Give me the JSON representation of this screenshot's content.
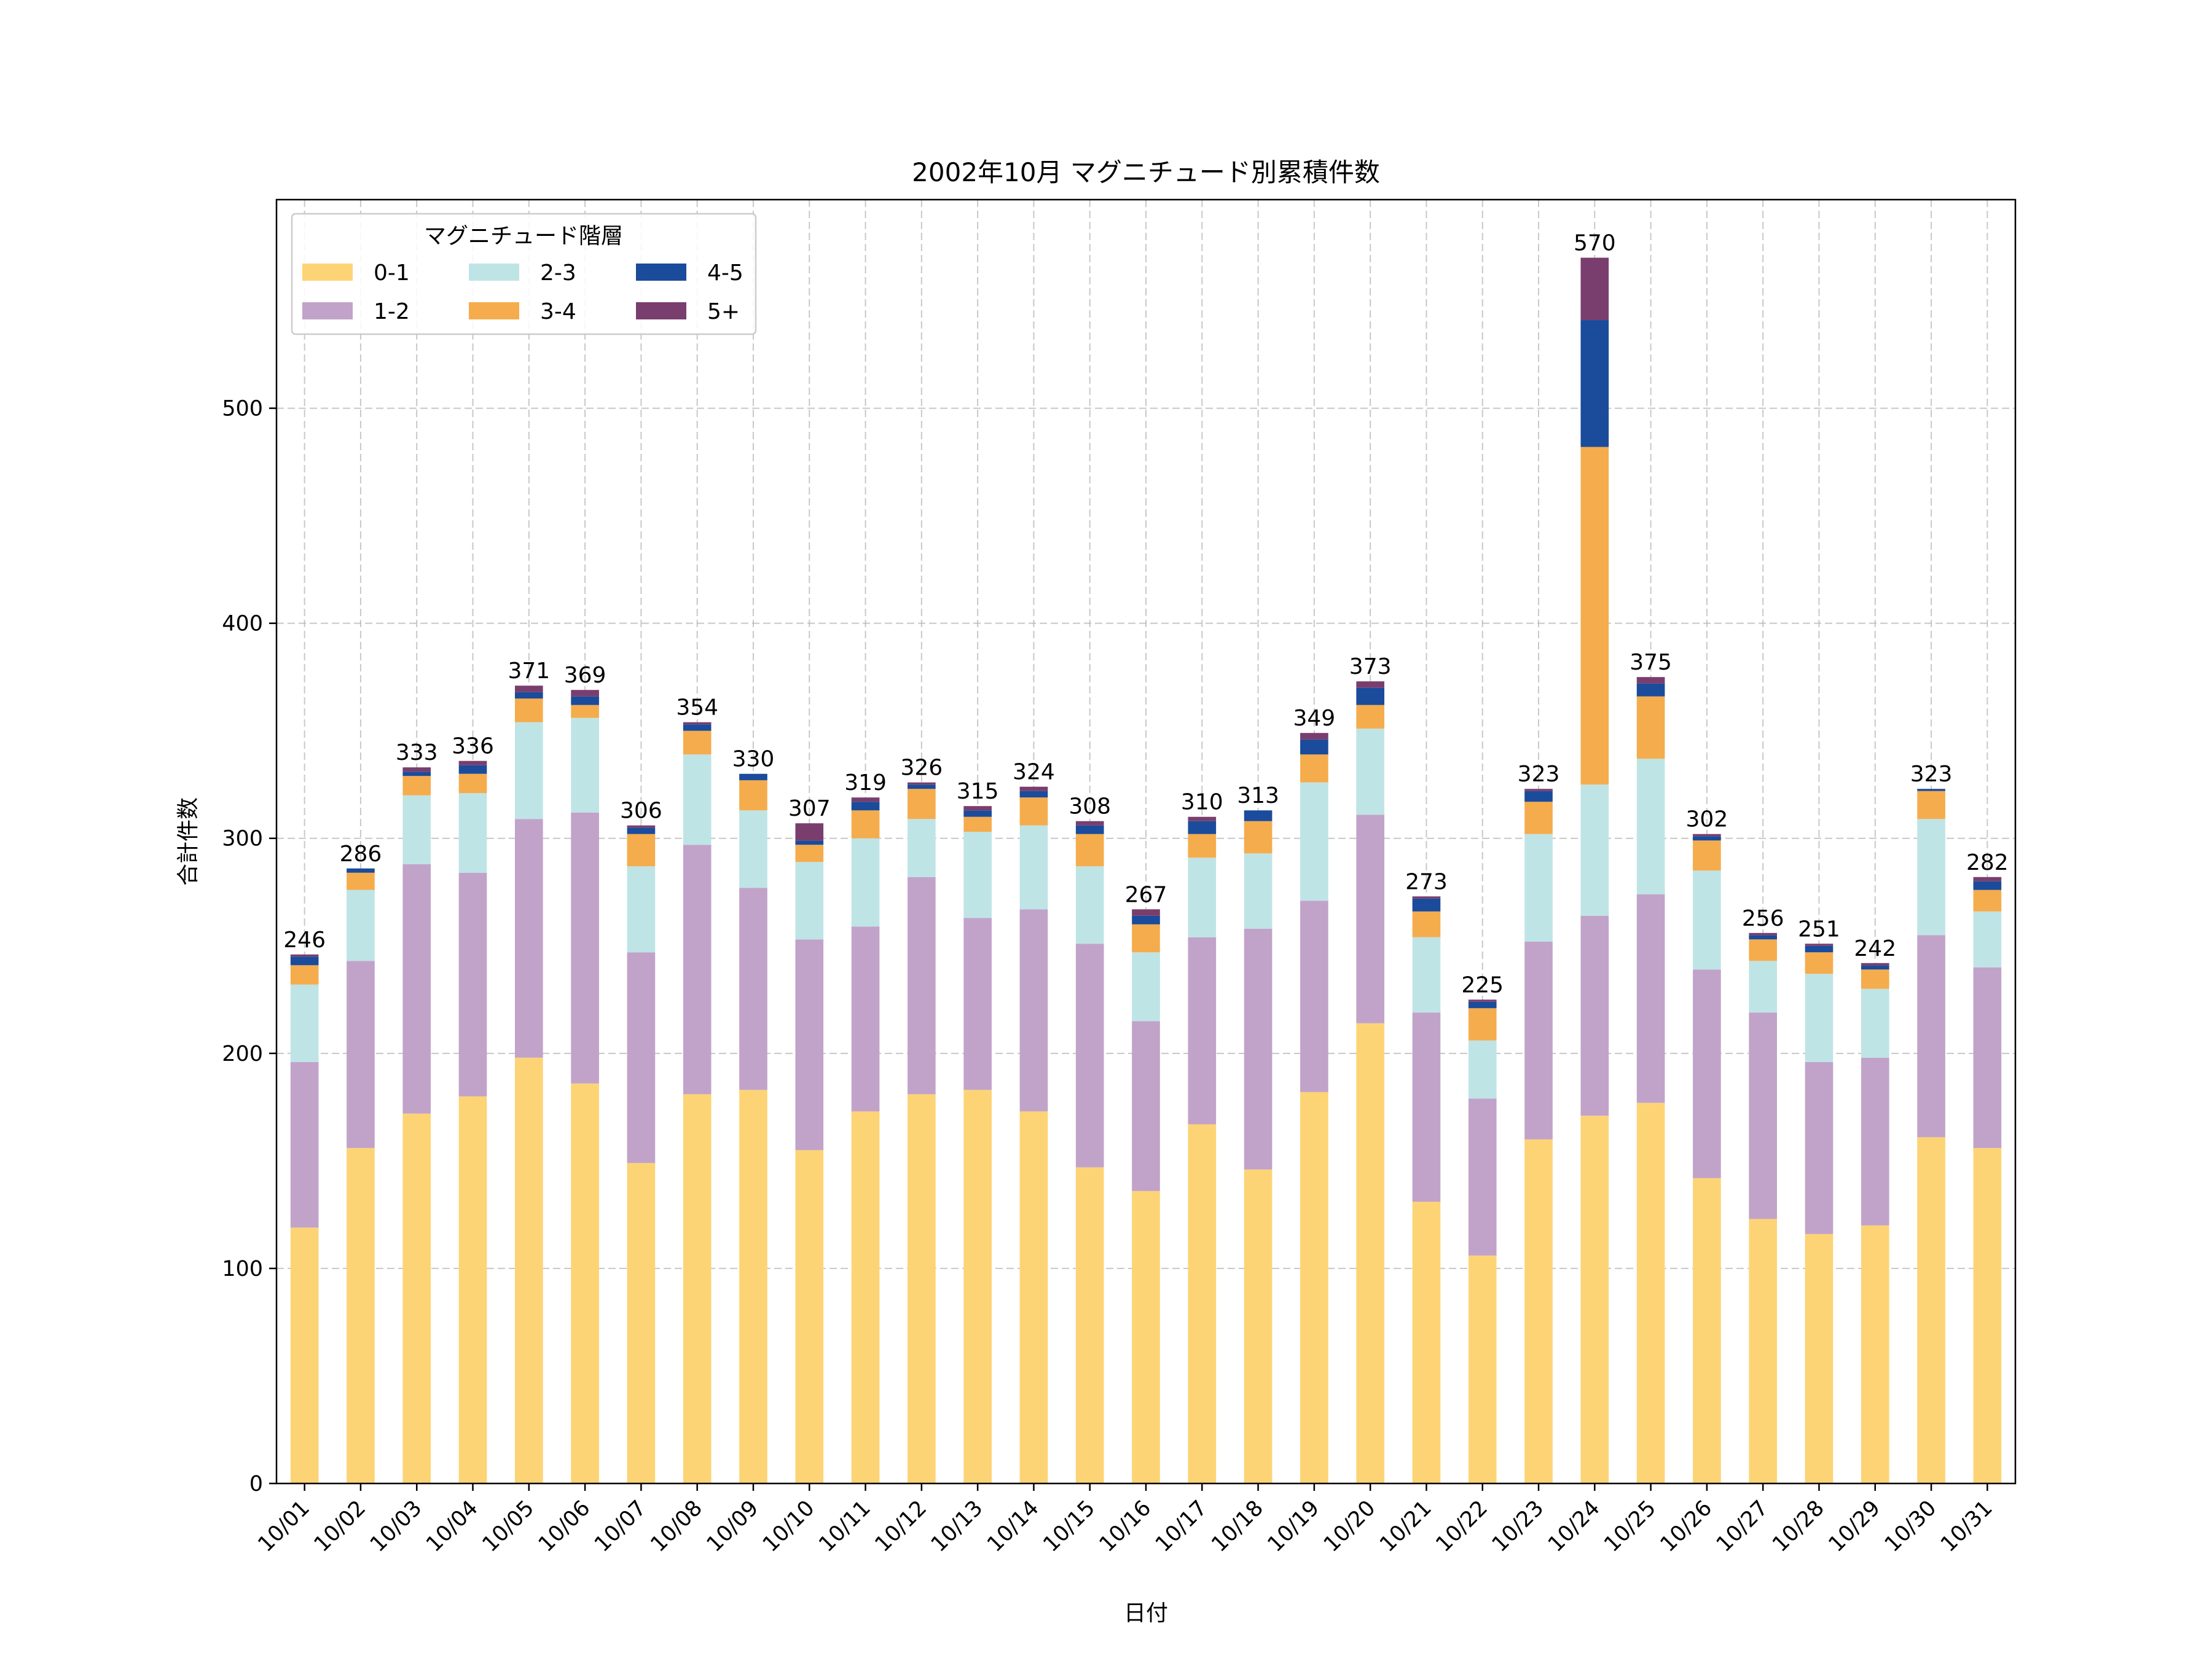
{
  "chart_data": {
    "type": "bar",
    "stacked": true,
    "title": "2002年10月 マグニチュード別累積件数",
    "xlabel": "日付",
    "ylabel": "合計件数",
    "ylim": [
      0,
      597
    ],
    "yticks": [
      0,
      100,
      200,
      300,
      400,
      500
    ],
    "grid": true,
    "legend": {
      "title": "マグニチュード階層",
      "position": "top-left",
      "columns": 3
    },
    "categories": [
      "10/01",
      "10/02",
      "10/03",
      "10/04",
      "10/05",
      "10/06",
      "10/07",
      "10/08",
      "10/09",
      "10/10",
      "10/11",
      "10/12",
      "10/13",
      "10/14",
      "10/15",
      "10/16",
      "10/17",
      "10/18",
      "10/19",
      "10/20",
      "10/21",
      "10/22",
      "10/23",
      "10/24",
      "10/25",
      "10/26",
      "10/27",
      "10/28",
      "10/29",
      "10/30",
      "10/31"
    ],
    "series": [
      {
        "name": "0-1",
        "color": "#fdd475",
        "values": [
          119,
          156,
          172,
          180,
          198,
          186,
          149,
          181,
          183,
          155,
          173,
          181,
          183,
          173,
          147,
          136,
          167,
          146,
          182,
          214,
          131,
          106,
          160,
          171,
          177,
          142,
          123,
          116,
          120,
          161,
          156
        ]
      },
      {
        "name": "1-2",
        "color": "#c1a3c9",
        "values": [
          77,
          87,
          116,
          104,
          111,
          126,
          98,
          116,
          94,
          98,
          86,
          101,
          80,
          94,
          104,
          79,
          87,
          112,
          89,
          97,
          88,
          73,
          92,
          93,
          97,
          97,
          96,
          80,
          78,
          94,
          84
        ]
      },
      {
        "name": "2-3",
        "color": "#bfe4e6",
        "values": [
          36,
          33,
          32,
          37,
          45,
          44,
          40,
          42,
          36,
          36,
          41,
          27,
          40,
          39,
          36,
          32,
          37,
          35,
          55,
          40,
          35,
          27,
          50,
          61,
          63,
          46,
          24,
          41,
          32,
          54,
          26
        ]
      },
      {
        "name": "3-4",
        "color": "#f5ac4d",
        "values": [
          9,
          8,
          9,
          9,
          11,
          6,
          15,
          11,
          14,
          8,
          13,
          14,
          7,
          13,
          15,
          13,
          11,
          15,
          13,
          11,
          12,
          15,
          15,
          157,
          29,
          14,
          10,
          10,
          9,
          13,
          10
        ]
      },
      {
        "name": "4-5",
        "color": "#1b4b9b",
        "values": [
          4,
          2,
          2,
          4,
          3,
          4,
          3,
          3,
          3,
          2,
          4,
          2,
          3,
          3,
          4,
          4,
          6,
          5,
          7,
          8,
          6,
          3,
          5,
          59,
          6,
          2,
          2,
          3,
          2,
          1,
          4
        ]
      },
      {
        "name": "5+",
        "color": "#793e6e",
        "values": [
          1,
          0,
          2,
          2,
          3,
          3,
          1,
          1,
          0,
          8,
          2,
          1,
          2,
          2,
          2,
          3,
          2,
          0,
          3,
          3,
          1,
          1,
          1,
          29,
          3,
          1,
          1,
          1,
          1,
          0,
          2
        ]
      }
    ],
    "totals": [
      246,
      286,
      333,
      336,
      371,
      369,
      306,
      354,
      330,
      307,
      319,
      326,
      315,
      324,
      308,
      267,
      310,
      313,
      349,
      373,
      273,
      225,
      323,
      570,
      375,
      302,
      256,
      251,
      242,
      323,
      282
    ]
  }
}
